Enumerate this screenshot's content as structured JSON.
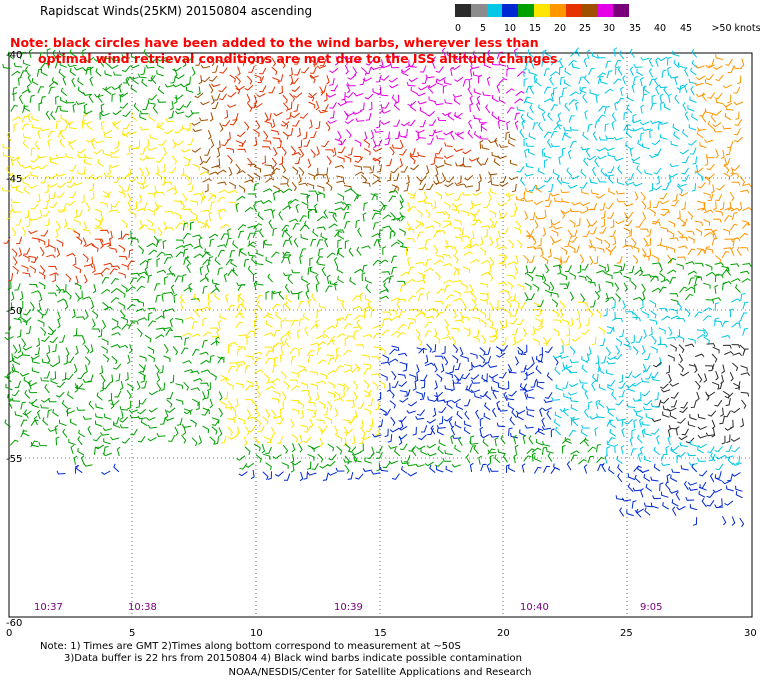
{
  "header": {
    "title": "Rapidscat Winds(25KM) 20150804 ascending",
    "note_line1": "Note: black circles have been added to the wind barbs, wherever less than",
    "note_line2": "optimal wind retrieval conditions are met due to the ISS altitude changes"
  },
  "legend": {
    "labels": [
      "0",
      "5",
      "10",
      "15",
      "20",
      "25",
      "30",
      "35",
      "40",
      "45",
      ">50 knots"
    ],
    "colors": [
      "#2b2b2b",
      "#8c8c8c",
      "#00c8e6",
      "#0028d2",
      "#00a000",
      "#ffe600",
      "#ff9600",
      "#e63200",
      "#a05000",
      "#e600e6",
      "#780078"
    ]
  },
  "map": {
    "lat_labels": [
      "-40",
      "-45",
      "-50",
      "-55",
      "-60"
    ],
    "lon_labels": [
      "0",
      "5",
      "10",
      "15",
      "20",
      "25",
      "30"
    ],
    "time_labels": [
      "10:37",
      "10:38",
      "10:39",
      "10:40",
      "9:05"
    ]
  },
  "footer": {
    "line1": "Note: 1) Times are GMT 2)Times along bottom correspond to measurement at ~50S",
    "line2": "3)Data buffer is 22 hrs from 20150804 4) Black wind barbs indicate possible contamination",
    "line3": "NOAA/NESDIS/Center for Satellite Applications and Research"
  }
}
